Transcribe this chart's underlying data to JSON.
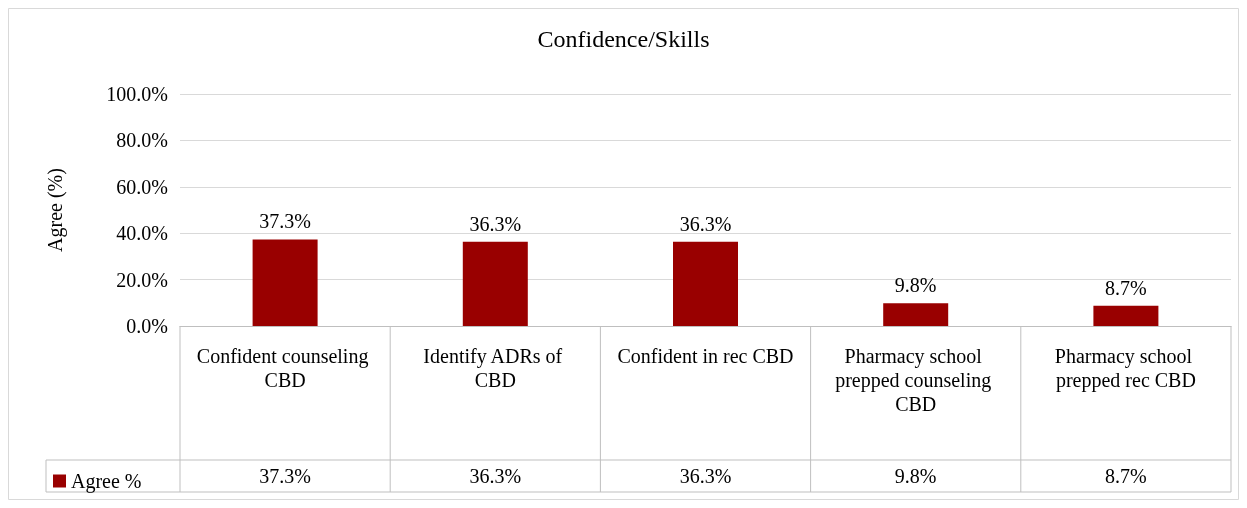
{
  "chart_data": {
    "type": "bar",
    "title": "Confidence/Skills",
    "ylabel": "Agree (%)",
    "categories": [
      "Confident counseling CBD",
      "Identify ADRs of CBD",
      "Confident in rec CBD",
      "Pharmacy school prepped counseling CBD",
      "Pharmacy school prepped rec CBD"
    ],
    "series": [
      {
        "name": "Agree %",
        "color": "#990000",
        "values": [
          37.3,
          36.3,
          36.3,
          9.8,
          8.7
        ],
        "value_labels": [
          "37.3%",
          "36.3%",
          "36.3%",
          "9.8%",
          "8.7%"
        ]
      }
    ],
    "ylim": [
      0,
      100
    ],
    "yticks": [
      {
        "value": 0,
        "label": "0.0%"
      },
      {
        "value": 20,
        "label": "20.0%"
      },
      {
        "value": 40,
        "label": "40.0%"
      },
      {
        "value": 60,
        "label": "60.0%"
      },
      {
        "value": 80,
        "label": "80.0%"
      },
      {
        "value": 100,
        "label": "100.0%"
      }
    ],
    "grid": "y",
    "legend": "bottom left"
  }
}
